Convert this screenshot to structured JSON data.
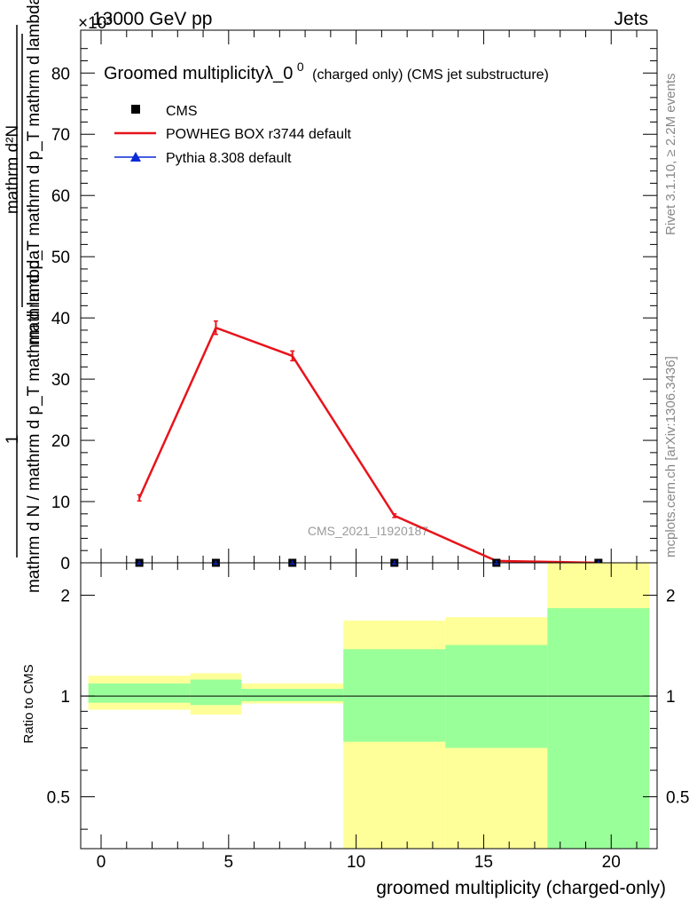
{
  "header": {
    "process": "13000 GeV pp",
    "category": "Jets",
    "exponent_marker": "×10³"
  },
  "side_labels": {
    "rivet": "Rivet 3.1.10, ≥ 2.2M events",
    "mcplots": "mcplots.cern.ch [arXiv:1306.3436]"
  },
  "watermark": "CMS_2021_I1920187",
  "chart_data": [
    {
      "type": "line",
      "title_main": "Groomed multiplicityλ_0",
      "title_sup": "0",
      "title_sub": "(charged only) (CMS jet substructure)",
      "ylabel_numerator": "1",
      "ylabel_denominator": "mathrm d N / mathrm d p_T mathrm d lambda",
      "ylabel_denominator_num": "mathrm d²N",
      "ylabel_denominator_den": "mathrm d p_T mathrm d p_T mathrm d lambda",
      "xlim": [
        -0.8,
        21.8
      ],
      "ylim": [
        0,
        87
      ],
      "y_scale_factor": "x10^3",
      "y_ticks": [
        0,
        10,
        20,
        30,
        40,
        50,
        60,
        70,
        80
      ],
      "y_tick_labels": [
        "0",
        "10",
        "20",
        "30",
        "40",
        "50",
        "60",
        "70",
        "80"
      ],
      "legend": {
        "position": "top-left",
        "entries": [
          {
            "label": "CMS",
            "marker": "square",
            "color": "#000000"
          },
          {
            "label": "POWHEG BOX r3744 default",
            "marker": "line",
            "color": "#e8131b"
          },
          {
            "label": "Pythia 8.308 default",
            "marker": "triangle",
            "color": "#0a2ad6"
          }
        ]
      },
      "series": [
        {
          "name": "CMS",
          "style": "points",
          "color": "#000000",
          "x": [
            1.5,
            4.5,
            7.5,
            11.5,
            15.5,
            19.5
          ],
          "y": [
            0,
            0,
            0,
            0,
            0,
            0
          ]
        },
        {
          "name": "POWHEG BOX r3744 default",
          "style": "line",
          "color": "#e8131b",
          "x": [
            1.5,
            4.5,
            7.5,
            11.5,
            15.5,
            19.5
          ],
          "y": [
            10.6,
            38.4,
            33.8,
            7.7,
            0.3,
            0.0
          ],
          "err": [
            0.5,
            1.1,
            0.8,
            0.3,
            0.1,
            0.05
          ]
        },
        {
          "name": "Pythia 8.308 default",
          "style": "points",
          "color": "#0a2ad6",
          "x": [
            1.5,
            4.5,
            7.5,
            11.5,
            15.5,
            19.5
          ],
          "y": [
            0,
            0,
            0,
            0,
            0,
            0
          ]
        }
      ]
    },
    {
      "type": "area",
      "ylabel": "Ratio to CMS",
      "xlabel": "groomed multiplicity (charged-only)",
      "xlim": [
        -0.8,
        21.8
      ],
      "ylim": [
        0.35,
        2.5
      ],
      "y_scale": "log",
      "x_ticks": [
        0,
        5,
        10,
        15,
        20
      ],
      "x_tick_labels": [
        "0",
        "5",
        "10",
        "15",
        "20"
      ],
      "y_ticks": [
        0.5,
        1,
        2
      ],
      "y_tick_labels": [
        "0.5",
        "1",
        "2"
      ],
      "reference_line": 1,
      "bands": [
        {
          "x_low": -0.5,
          "x_high": 3.5,
          "yellow": [
            0.91,
            1.15
          ],
          "green": [
            0.955,
            1.09
          ]
        },
        {
          "x_low": 3.5,
          "x_high": 5.5,
          "yellow": [
            0.88,
            1.17
          ],
          "green": [
            0.94,
            1.12
          ]
        },
        {
          "x_low": 5.5,
          "x_high": 9.5,
          "yellow": [
            0.95,
            1.09
          ],
          "green": [
            0.965,
            1.05
          ]
        },
        {
          "x_low": 9.5,
          "x_high": 13.5,
          "yellow": [
            0.3,
            1.68
          ],
          "green": [
            0.73,
            1.38
          ]
        },
        {
          "x_low": 13.5,
          "x_high": 17.5,
          "yellow": [
            0.3,
            1.72
          ],
          "green": [
            0.7,
            1.42
          ]
        },
        {
          "x_low": 17.5,
          "x_high": 21.5,
          "yellow": [
            0.3,
            2.6
          ],
          "green": [
            0.3,
            1.83
          ]
        }
      ],
      "band_colors": {
        "yellow": "#ffff99",
        "green": "#99ff99"
      }
    }
  ]
}
